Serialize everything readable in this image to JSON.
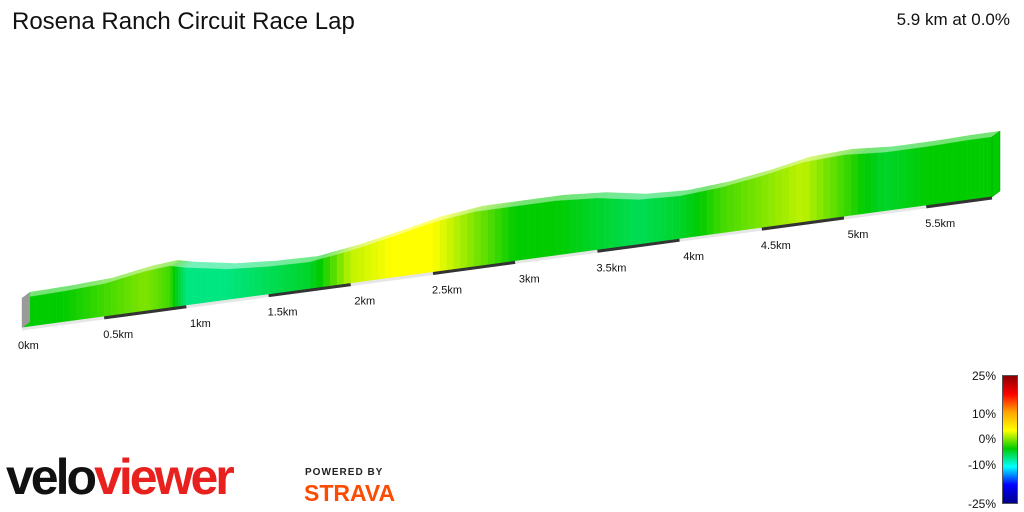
{
  "header": {
    "title": "Rosena Ranch Circuit Race Lap",
    "summary": "5.9 km at 0.0%"
  },
  "legend": {
    "labels": [
      "25%",
      "10%",
      "0%",
      "-10%",
      "-25%"
    ],
    "colors": [
      "#8b0000",
      "#ff0000",
      "#ffa500",
      "#ffff00",
      "#00cc00",
      "#00ffff",
      "#0000ff",
      "#00008b"
    ]
  },
  "branding": {
    "logo_velo": "velo",
    "logo_viewer": "viewer",
    "powered_by": "POWERED BY",
    "strava": "STRAVA"
  },
  "chart_data": {
    "type": "area",
    "title": "Rosena Ranch Circuit Race Lap",
    "x_unit": "km",
    "x_ticks": [
      "0km",
      "0.5km",
      "1km",
      "1.5km",
      "2km",
      "2.5km",
      "3km",
      "3.5km",
      "4km",
      "4.5km",
      "5km",
      "5.5km"
    ],
    "xlim": [
      0,
      5.9
    ],
    "distance_km": [
      0,
      0.25,
      0.5,
      0.75,
      0.9,
      1.0,
      1.25,
      1.5,
      1.75,
      2.0,
      2.25,
      2.5,
      2.75,
      3.0,
      3.25,
      3.5,
      3.75,
      4.0,
      4.25,
      4.5,
      4.75,
      5.0,
      5.25,
      5.5,
      5.75,
      5.9
    ],
    "relative_elevation": [
      0,
      1,
      3,
      10,
      12,
      8,
      1,
      -2,
      -3,
      3,
      11,
      20,
      25,
      25,
      25,
      22,
      15,
      13,
      16,
      22,
      30,
      32,
      29,
      29,
      30,
      30
    ],
    "grade_percent": [
      0,
      0,
      1,
      2,
      1,
      -3,
      -3,
      -2,
      -1,
      3,
      4,
      4,
      2,
      0,
      0,
      -1,
      -2,
      -1,
      1,
      2,
      3,
      1,
      -1,
      0,
      0,
      0
    ],
    "legend_scale": [
      "25%",
      "10%",
      "0%",
      "-10%",
      "-25%"
    ],
    "grade_range": [
      -25,
      25
    ]
  }
}
